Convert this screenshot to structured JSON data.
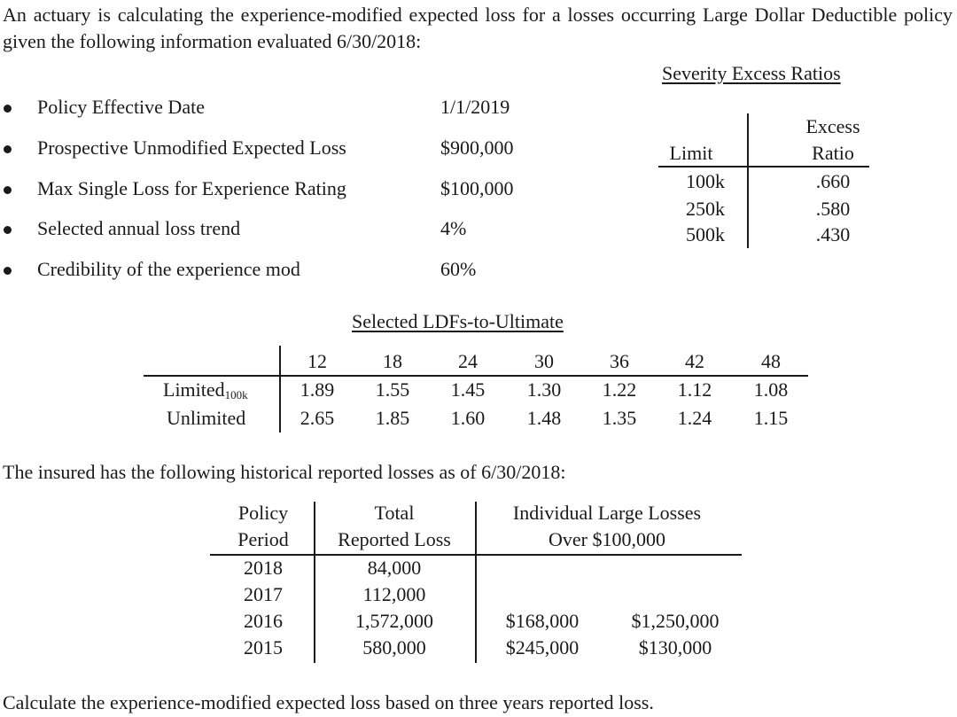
{
  "intro": "An actuary is calculating the experience-modified expected loss for a losses occurring Large Dollar Deductible policy given the following information evaluated 6/30/2018:",
  "bullets": [
    {
      "label": "Policy Effective Date",
      "value": "1/1/2019"
    },
    {
      "label": "Prospective Unmodified Expected Loss",
      "value": "$900,000"
    },
    {
      "label": "Max Single Loss for Experience Rating",
      "value": "$100,000"
    },
    {
      "label": "Selected annual loss trend",
      "value": "4%"
    },
    {
      "label": "Credibility of the experience mod",
      "value": "60%"
    }
  ],
  "severity": {
    "title": "Severity Excess Ratios",
    "col_limit": "Limit",
    "col_excess_1": "Excess",
    "col_excess_2": "Ratio",
    "rows": [
      {
        "limit": "100k",
        "ratio": ".660"
      },
      {
        "limit": "250k",
        "ratio": ".580"
      },
      {
        "limit": "500k",
        "ratio": ".430"
      }
    ]
  },
  "ldf": {
    "title": "Selected LDFs-to-Ultimate",
    "ages": [
      "12",
      "18",
      "24",
      "30",
      "36",
      "42",
      "48"
    ],
    "limited_label": "Limited",
    "limited_sub": "100k",
    "limited": [
      "1.89",
      "1.55",
      "1.45",
      "1.30",
      "1.22",
      "1.12",
      "1.08"
    ],
    "unlimited_label": "Unlimited",
    "unlimited": [
      "2.65",
      "1.85",
      "1.60",
      "1.48",
      "1.35",
      "1.24",
      "1.15"
    ]
  },
  "hist_intro": "The insured has the following historical reported losses as of 6/30/2018:",
  "hist": {
    "h_policy_1": "Policy",
    "h_policy_2": "Period",
    "h_total_1": "Total",
    "h_total_2": "Reported Loss",
    "h_large_1": "Individual Large Losses",
    "h_large_2": "Over $100,000",
    "rows": [
      {
        "period": "2018",
        "total": "84,000",
        "large1": "",
        "large2": ""
      },
      {
        "period": "2017",
        "total": "112,000",
        "large1": "",
        "large2": ""
      },
      {
        "period": "2016",
        "total": "1,572,000",
        "large1": "$168,000",
        "large2": "$1,250,000"
      },
      {
        "period": "2015",
        "total": "580,000",
        "large1": "$245,000",
        "large2": "$130,000"
      }
    ]
  },
  "question": "Calculate the experience-modified expected loss based on three years reported loss."
}
